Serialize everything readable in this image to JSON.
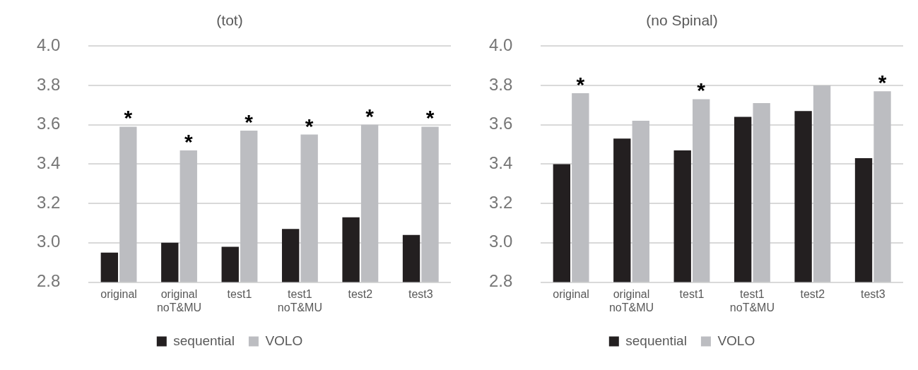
{
  "chart_data": [
    {
      "type": "bar",
      "title": "(tot)",
      "categories": [
        "original",
        "original noT&MU",
        "test1",
        "test1 noT&MU",
        "test2",
        "test3"
      ],
      "series": [
        {
          "name": "sequential",
          "color": "#231f20",
          "values": [
            2.95,
            3.0,
            2.98,
            3.07,
            3.13,
            3.04
          ]
        },
        {
          "name": "VOLO",
          "color": "#bcbdc1",
          "values": [
            3.59,
            3.47,
            3.57,
            3.55,
            3.6,
            3.59
          ]
        }
      ],
      "ylim": [
        2.8,
        4.0
      ],
      "yticks": [
        {
          "value": 2.8,
          "label": "2.8"
        },
        {
          "value": 3.0,
          "label": "3.0"
        },
        {
          "value": 3.2,
          "label": "3.2"
        },
        {
          "value": 3.4,
          "label": "3.4"
        },
        {
          "value": 3.6,
          "label": "3.6"
        },
        {
          "value": 3.8,
          "label": "3.8"
        },
        {
          "value": 4.0,
          "label": "4.0"
        }
      ],
      "grid": "y",
      "legend": "bottom",
      "annotations": [
        {
          "text": "*",
          "x": "original",
          "y": 3.59
        },
        {
          "text": "*",
          "x": "original noT&MU",
          "y": 3.47
        },
        {
          "text": "*",
          "x": "test1",
          "y": 3.57
        },
        {
          "text": "*",
          "x": "test1 noT&MU",
          "y": 3.55
        },
        {
          "text": "*",
          "x": "test2",
          "y": 3.6
        },
        {
          "text": "*",
          "x": "test3",
          "y": 3.59
        }
      ]
    },
    {
      "type": "bar",
      "title": "(no Spinal)",
      "categories": [
        "original",
        "original noT&MU",
        "test1",
        "test1 noT&MU",
        "test2",
        "test3"
      ],
      "series": [
        {
          "name": "sequential",
          "color": "#231f20",
          "values": [
            3.4,
            3.53,
            3.47,
            3.64,
            3.67,
            3.43
          ]
        },
        {
          "name": "VOLO",
          "color": "#bcbdc1",
          "values": [
            3.76,
            3.62,
            3.73,
            3.71,
            3.8,
            3.77
          ]
        }
      ],
      "ylim": [
        2.8,
        4.0
      ],
      "yticks": [
        {
          "value": 2.8,
          "label": "2.8"
        },
        {
          "value": 3.0,
          "label": "3.0"
        },
        {
          "value": 3.2,
          "label": "3.2"
        },
        {
          "value": 3.4,
          "label": "3.4"
        },
        {
          "value": 3.6,
          "label": "3.6"
        },
        {
          "value": 3.8,
          "label": "3.8"
        },
        {
          "value": 4.0,
          "label": "4.0"
        }
      ],
      "grid": "y",
      "legend": "bottom",
      "annotations": [
        {
          "text": "*",
          "x": "original",
          "y": 3.76
        },
        {
          "text": "*",
          "x": "test1",
          "y": 3.73
        },
        {
          "text": "*",
          "x": "test3",
          "y": 3.77
        }
      ]
    }
  ]
}
